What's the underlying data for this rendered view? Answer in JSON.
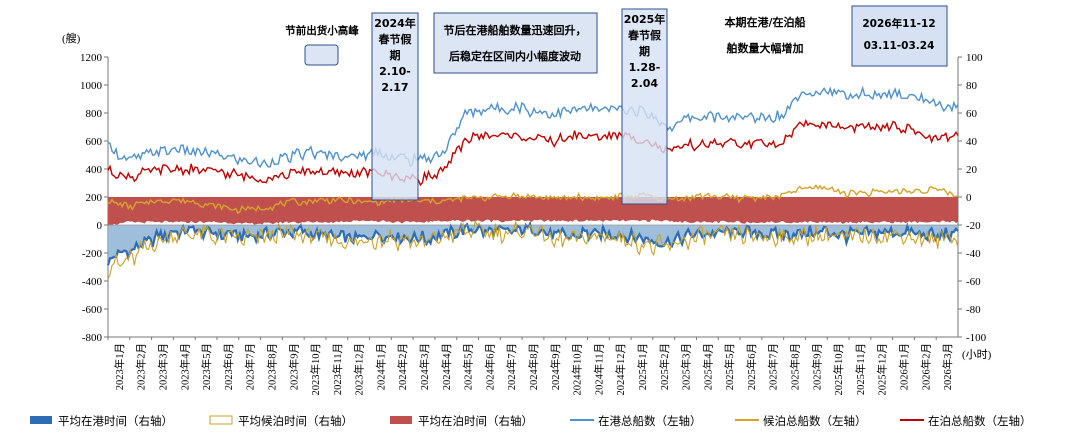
{
  "chart_data": {
    "type": "area+line",
    "left_axis": {
      "label": "(艘)",
      "ylim": [
        -800,
        1200
      ],
      "ticks": [
        1200,
        1000,
        800,
        600,
        400,
        200,
        0,
        -200,
        -400,
        -600,
        -800
      ]
    },
    "right_axis": {
      "label": "(小时)",
      "ylim": [
        -100,
        100
      ],
      "ticks": [
        100,
        80,
        60,
        40,
        20,
        0,
        -20,
        -40,
        -60,
        -80,
        -100
      ]
    },
    "months": [
      "2023年1月",
      "2023年2月",
      "2023年3月",
      "2023年4月",
      "2023年5月",
      "2023年6月",
      "2023年7月",
      "2023年8月",
      "2023年9月",
      "2023年10月",
      "2023年11月",
      "2023年12月",
      "2024年1月",
      "2024年2月",
      "2024年3月",
      "2024年4月",
      "2024年5月",
      "2024年6月",
      "2024年7月",
      "2024年8月",
      "2024年9月",
      "2024年10月",
      "2024年11月",
      "2024年12月",
      "2025年1月",
      "2025年2月",
      "2025年3月",
      "2025年4月",
      "2025年5月",
      "2025年6月",
      "2025年7月",
      "2025年8月",
      "2025年9月",
      "2025年10月",
      "2025年11月",
      "2025年12月",
      "2026年1月",
      "2026年2月",
      "2026年3月"
    ],
    "series": [
      {
        "name": "平均在港时间（右轴）",
        "axis": "right",
        "kind": "area",
        "color": "#2e6db4",
        "values": [
          -45,
          -38,
          -30,
          -25,
          -24,
          -26,
          -28,
          -27,
          -24,
          -26,
          -28,
          -30,
          -27,
          -28,
          -30,
          -27,
          -23,
          -24,
          -25,
          -22,
          -28,
          -27,
          -26,
          -27,
          -30,
          -33,
          -27,
          -26,
          -25,
          -26,
          -27,
          -26,
          -25,
          -27,
          -26,
          -25,
          -26,
          -28,
          -26
        ]
      },
      {
        "name": "平均候泊时间（右轴）",
        "axis": "right",
        "kind": "line",
        "color": "#c9a227",
        "values": [
          -50,
          -45,
          -33,
          -27,
          -26,
          -28,
          -30,
          -29,
          -26,
          -28,
          -30,
          -33,
          -29,
          -30,
          -33,
          -29,
          -24,
          -25,
          -26,
          -23,
          -32,
          -30,
          -28,
          -29,
          -34,
          -37,
          -29,
          -28,
          -27,
          -28,
          -29,
          -28,
          -27,
          -29,
          -28,
          -27,
          -28,
          -31,
          -28
        ]
      },
      {
        "name": "平均在泊时间（右轴）",
        "axis": "right",
        "kind": "area",
        "color": "#c0504d",
        "values": [
          -20,
          -18,
          -18,
          -18,
          -18,
          -18,
          -19,
          -19,
          -18,
          -18,
          -18,
          -17,
          -17,
          -18,
          -18,
          -17,
          -17,
          -17,
          -17,
          -17,
          -17,
          -17,
          -17,
          -17,
          -17,
          -17,
          -18,
          -18,
          -18,
          -18,
          -18,
          -18,
          -18,
          -18,
          -18,
          -18,
          -18,
          -18,
          -18
        ]
      },
      {
        "name": "在港总船数（左轴）",
        "axis": "left",
        "kind": "line",
        "color": "#4f91c9",
        "values": [
          560,
          460,
          520,
          540,
          520,
          500,
          460,
          440,
          480,
          520,
          500,
          490,
          520,
          480,
          460,
          520,
          800,
          830,
          840,
          820,
          790,
          830,
          820,
          830,
          810,
          700,
          760,
          780,
          760,
          770,
          770,
          950,
          960,
          920,
          930,
          940,
          910,
          860,
          830
        ]
      },
      {
        "name": "候泊总船数（左轴）",
        "axis": "left",
        "kind": "line",
        "color": "#d4a42a",
        "values": [
          170,
          130,
          170,
          180,
          160,
          130,
          110,
          120,
          160,
          170,
          180,
          170,
          160,
          180,
          170,
          170,
          190,
          200,
          210,
          200,
          190,
          200,
          190,
          200,
          210,
          180,
          200,
          210,
          190,
          200,
          200,
          260,
          270,
          230,
          230,
          240,
          240,
          260,
          200
        ]
      },
      {
        "name": "在泊总船数（左轴）",
        "axis": "left",
        "kind": "line",
        "color": "#c00000",
        "values": [
          390,
          340,
          390,
          400,
          390,
          380,
          350,
          330,
          360,
          390,
          370,
          370,
          380,
          340,
          330,
          380,
          620,
          640,
          640,
          620,
          600,
          640,
          630,
          640,
          610,
          520,
          570,
          580,
          580,
          580,
          580,
          720,
          720,
          690,
          700,
          700,
          670,
          620,
          630
        ]
      }
    ],
    "annotations": [
      {
        "text": "节前出货小高峰"
      },
      {
        "text": [
          "2024年",
          "春节假",
          "期",
          "2.10-",
          "2.17"
        ]
      },
      {
        "text": [
          "节后在港船舶数量迅速回升，",
          "后稳定在区间内小幅度波动"
        ]
      },
      {
        "text": [
          "2025年",
          "春节假",
          "期",
          "1.28-",
          "2.04"
        ]
      },
      {
        "text": [
          "本期在港/在泊船",
          "舶数量大幅增加"
        ]
      },
      {
        "text": [
          "2026年11-12",
          "03.11-03.24"
        ]
      }
    ]
  }
}
